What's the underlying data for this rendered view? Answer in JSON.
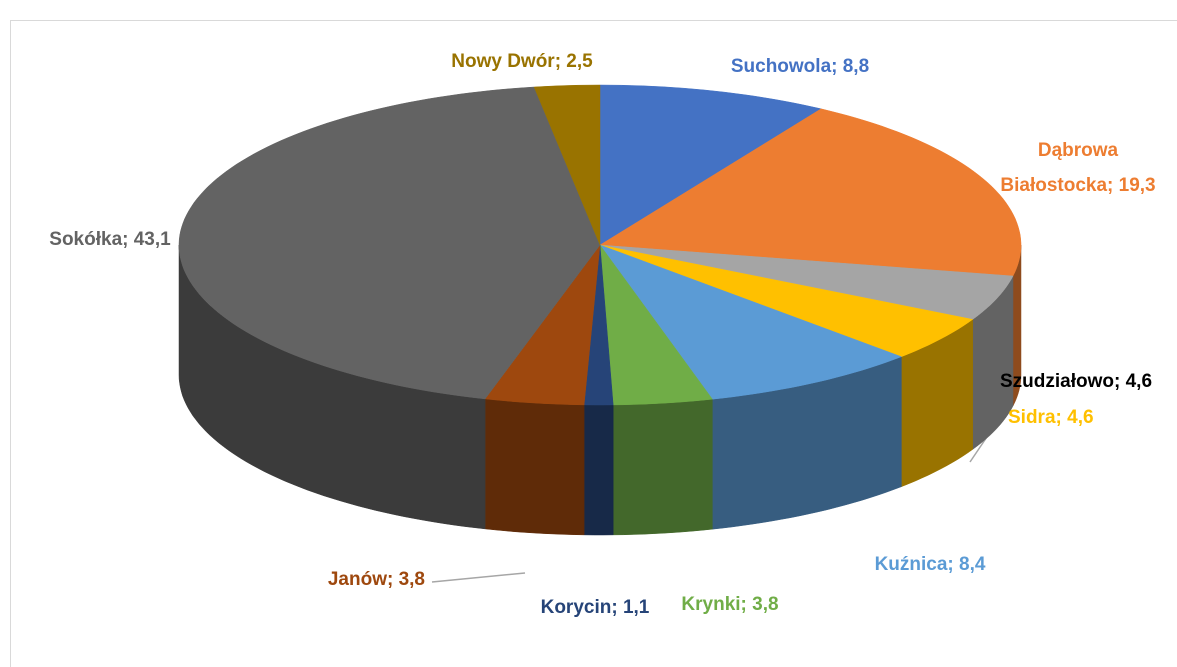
{
  "chart_data": {
    "type": "pie3d",
    "labels": [
      "Suchowola; 8,8",
      "Dąbrowa Białostocka; 19,3",
      "Szudziałowo; 4,6",
      "Sidra; 4,6",
      "Kuźnica; 8,4",
      "Krynki; 3,8",
      "Korycin; 1,1",
      "Janów; 3,8",
      "Sokółka; 43,1",
      "Nowy Dwór; 2,5"
    ],
    "values": [
      8.8,
      19.3,
      4.6,
      4.6,
      8.4,
      3.8,
      1.1,
      3.8,
      43.1,
      2.5
    ],
    "colors": [
      "#4472c4",
      "#ed7d31",
      "#a5a5a5",
      "#ffc000",
      "#5b9bd5",
      "#70ad47",
      "#264478",
      "#9e480e",
      "#636363",
      "#997300"
    ],
    "label_colors": [
      "#4472c4",
      "#ed7d31",
      "#000000",
      "#ffc000",
      "#5b9bd5",
      "#70ad47",
      "#264478",
      "#9e480e",
      "#636363",
      "#997300"
    ]
  }
}
